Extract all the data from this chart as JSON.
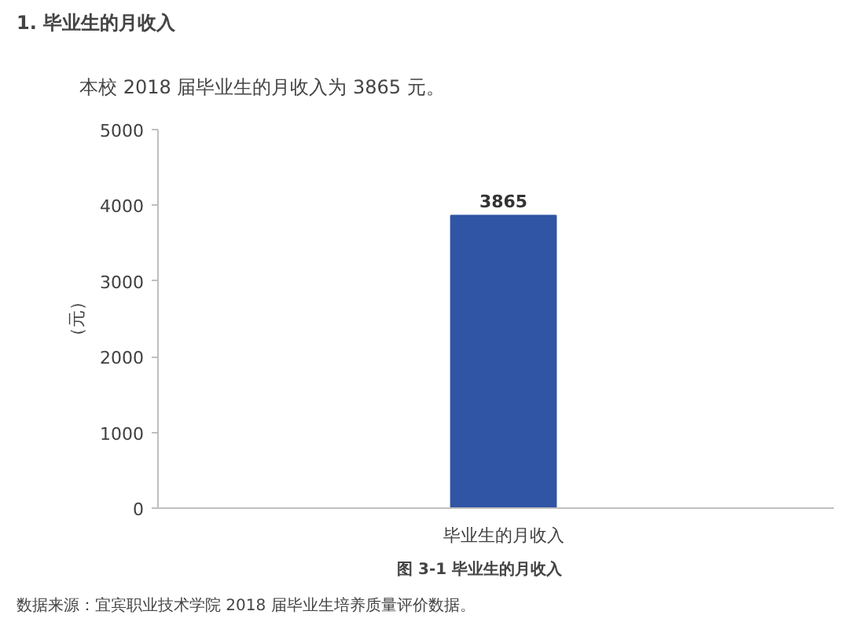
{
  "chart_data": {
    "type": "bar",
    "title": "1.    毕业生的月收入",
    "subtitle": "本校 2018 届毕业生的月收入为 3865 元。",
    "ylabel": "（元）",
    "categories": [
      "毕业生的月收入"
    ],
    "series": [
      {
        "color": "#2f55a4",
        "values": [
          3865
        ]
      }
    ],
    "ylim": [
      0,
      5000
    ],
    "yticks": [
      0,
      1000,
      2000,
      3000,
      4000,
      5000
    ],
    "grid": false,
    "data_labels": true,
    "annotations": [
      "图  3-1      毕业生的月收入",
      "数据来源：宜宾职业技术学院 2018 届毕业生培养质量评价数据。"
    ]
  }
}
